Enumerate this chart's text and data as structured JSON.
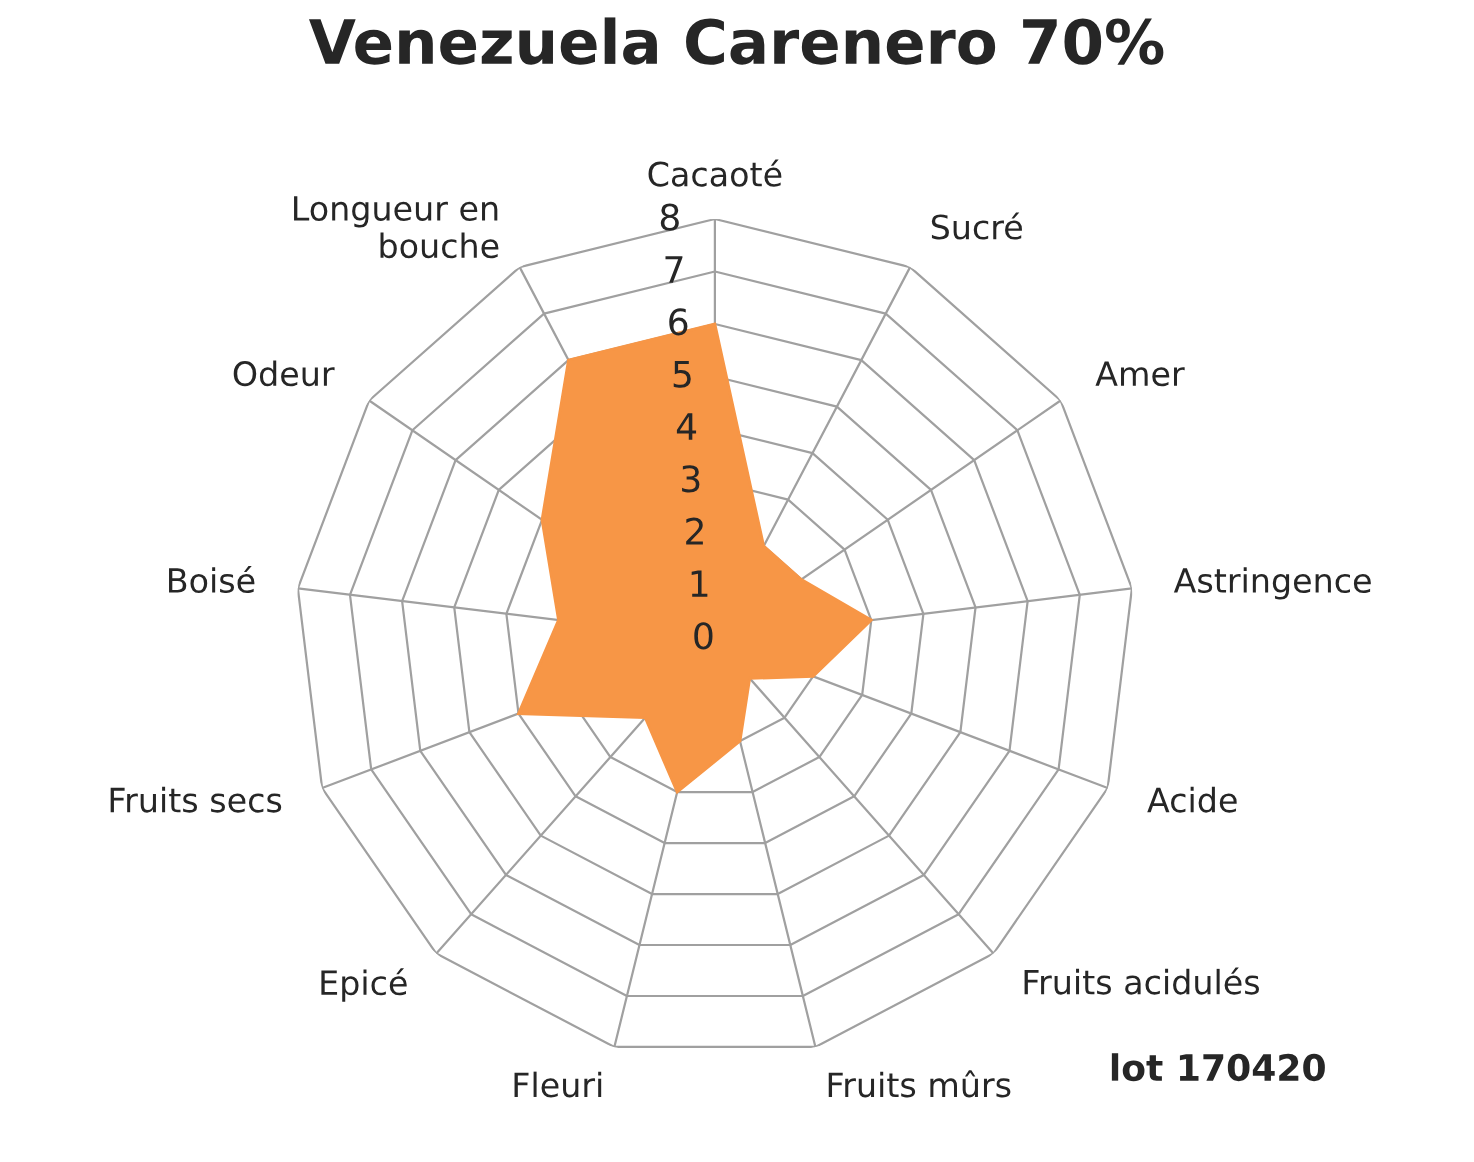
{
  "chart_data": {
    "type": "radar",
    "title": "Venezuela Carenero 70%",
    "categories": [
      "Cacaoté",
      "Sucré",
      "Amer",
      "Astringence",
      "Acide",
      "Fruits acidulés",
      "Fruits mûrs",
      "Fleuri",
      "Epicé",
      "Fruits secs",
      "Boisé",
      "Odeur",
      "Longueur en\nbouche"
    ],
    "series": [
      {
        "color": "#f79646",
        "values": [
          6,
          2,
          2,
          3,
          2,
          1,
          2,
          3,
          2,
          4,
          3,
          4,
          6
        ]
      }
    ],
    "ylim": [
      0,
      8
    ],
    "yticks": [
      0,
      1,
      2,
      3,
      4,
      5,
      6,
      7,
      8
    ],
    "grid": true,
    "annotations": [
      "lot 170420"
    ]
  }
}
